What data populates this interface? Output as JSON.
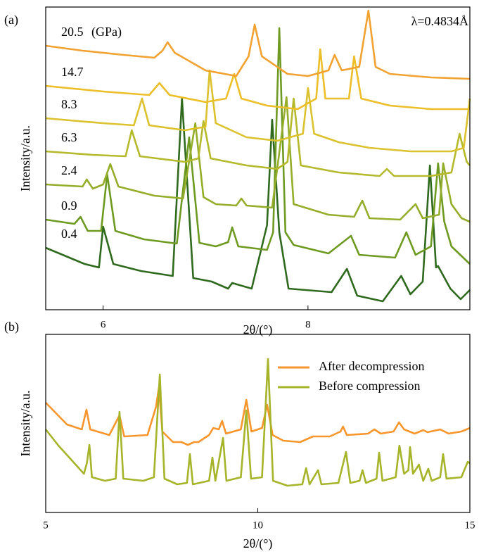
{
  "chart_data": [
    {
      "type": "line",
      "panel_label": "(a)",
      "xlabel": "2θ/(°)",
      "ylabel": "Intensity/a.u.",
      "xlim": [
        5.44,
        9.58
      ],
      "xticks": [
        6,
        8
      ],
      "ylim": [
        0,
        430
      ],
      "annotations": [
        "(GPa)",
        "λ=0.4834Å"
      ],
      "series": [
        {
          "name": "0.4",
          "color": "#2f6a1f",
          "x": [
            5.44,
            5.82,
            5.96,
            6.0,
            6.1,
            6.37,
            6.68,
            6.77,
            6.88,
            7.06,
            7.22,
            7.26,
            7.45,
            7.6,
            7.65,
            7.72,
            7.81,
            8.23,
            8.38,
            8.48,
            8.73,
            8.91,
            9.0,
            9.12,
            9.19,
            9.25,
            9.27,
            9.39,
            9.49,
            9.58
          ],
          "values": [
            88,
            65,
            60,
            118,
            65,
            55,
            48,
            300,
            45,
            40,
            30,
            38,
            30,
            120,
            270,
            110,
            30,
            25,
            58,
            20,
            12,
            48,
            22,
            40,
            205,
            60,
            62,
            30,
            15,
            28
          ]
        },
        {
          "name": "0.9",
          "color": "#6f9a22",
          "x": [
            5.44,
            5.72,
            5.78,
            5.85,
            5.98,
            6.04,
            6.12,
            6.4,
            6.72,
            6.84,
            6.94,
            7.1,
            7.22,
            7.26,
            7.32,
            7.6,
            7.66,
            7.72,
            7.78,
            7.86,
            8.2,
            8.42,
            8.5,
            8.85,
            8.96,
            9.05,
            9.2,
            9.27,
            9.33,
            9.4,
            9.58
          ],
          "values": [
            128,
            122,
            132,
            112,
            112,
            192,
            112,
            100,
            94,
            245,
            95,
            90,
            96,
            117,
            90,
            85,
            110,
            400,
            110,
            92,
            80,
            105,
            78,
            74,
            110,
            78,
            90,
            208,
            125,
            90,
            65
          ]
        },
        {
          "name": "2.4",
          "color": "#94ad2a",
          "x": [
            5.44,
            5.8,
            5.84,
            5.9,
            6.0,
            6.07,
            6.15,
            6.5,
            6.78,
            6.9,
            6.98,
            7.1,
            7.3,
            7.35,
            7.4,
            7.65,
            7.79,
            7.86,
            8.2,
            8.45,
            8.53,
            8.6,
            8.9,
            9.05,
            9.12,
            9.28,
            9.32,
            9.4,
            9.5,
            9.58
          ],
          "values": [
            178,
            175,
            185,
            172,
            178,
            207,
            175,
            162,
            158,
            265,
            160,
            150,
            148,
            158,
            148,
            145,
            302,
            150,
            135,
            132,
            155,
            130,
            128,
            150,
            130,
            135,
            208,
            150,
            130,
            125
          ]
        },
        {
          "name": "6.3",
          "color": "#b5b92c",
          "x": [
            5.44,
            5.9,
            6.22,
            6.28,
            6.36,
            6.8,
            6.93,
            6.98,
            7.05,
            7.4,
            7.7,
            7.8,
            7.86,
            7.93,
            8.3,
            8.7,
            8.77,
            8.84,
            9.2,
            9.4,
            9.48,
            9.55,
            9.58
          ],
          "values": [
            225,
            220,
            218,
            255,
            218,
            210,
            215,
            268,
            215,
            205,
            200,
            210,
            300,
            205,
            195,
            190,
            200,
            190,
            190,
            195,
            250,
            210,
            205
          ]
        },
        {
          "name": "8.3",
          "color": "#dcc22e",
          "x": [
            5.44,
            6.0,
            6.3,
            6.38,
            6.45,
            6.8,
            7.0,
            7.04,
            7.1,
            7.4,
            7.7,
            7.95,
            8.0,
            8.06,
            8.3,
            8.6,
            9.0,
            9.4,
            9.52,
            9.58
          ],
          "values": [
            272,
            265,
            262,
            300,
            262,
            255,
            260,
            340,
            265,
            245,
            240,
            250,
            315,
            250,
            238,
            230,
            225,
            225,
            230,
            300
          ]
        },
        {
          "name": "14.7",
          "color": "#ecbf2a",
          "x": [
            5.44,
            6.0,
            6.45,
            6.55,
            6.65,
            7.0,
            7.2,
            7.28,
            7.35,
            7.6,
            7.9,
            8.08,
            8.12,
            8.17,
            8.4,
            8.45,
            8.52,
            8.8,
            9.2,
            9.58
          ],
          "values": [
            318,
            310,
            305,
            322,
            305,
            295,
            300,
            335,
            300,
            290,
            285,
            300,
            370,
            300,
            300,
            360,
            300,
            290,
            285,
            285
          ]
        },
        {
          "name": "20.5",
          "color": "#f2a231",
          "x": [
            5.44,
            5.8,
            6.2,
            6.5,
            6.58,
            6.63,
            6.7,
            7.0,
            7.3,
            7.42,
            7.48,
            7.55,
            7.8,
            8.0,
            8.2,
            8.26,
            8.33,
            8.5,
            8.59,
            8.66,
            8.8,
            9.2,
            9.58
          ],
          "values": [
            375,
            368,
            362,
            358,
            368,
            380,
            365,
            340,
            332,
            360,
            405,
            360,
            335,
            332,
            340,
            362,
            340,
            345,
            425,
            345,
            335,
            330,
            328
          ]
        }
      ]
    },
    {
      "type": "line",
      "panel_label": "(b)",
      "xlabel": "2θ/(°)",
      "ylabel": "Intensity/a.u.",
      "xlim": [
        5,
        15
      ],
      "xticks": [
        5,
        10,
        15
      ],
      "ylim": [
        0,
        253
      ],
      "legend": "upper right",
      "series": [
        {
          "name": "After decompression",
          "color": "#f7962c",
          "x": [
            5.0,
            5.5,
            5.85,
            5.96,
            6.05,
            6.5,
            6.74,
            6.85,
            7.4,
            7.6,
            7.67,
            7.75,
            8.0,
            8.2,
            8.35,
            8.5,
            8.6,
            8.85,
            8.95,
            9.08,
            9.16,
            9.25,
            9.6,
            9.73,
            9.85,
            10.1,
            10.22,
            10.35,
            10.6,
            11.0,
            11.3,
            11.7,
            11.95,
            12.01,
            12.1,
            12.6,
            12.75,
            12.9,
            13.2,
            13.33,
            13.45,
            13.7,
            13.9,
            14.0,
            14.3,
            14.5,
            14.8,
            15.0
          ],
          "values": [
            156,
            125,
            118,
            146,
            118,
            110,
            138,
            108,
            110,
            150,
            178,
            115,
            100,
            100,
            96,
            100,
            100,
            110,
            120,
            118,
            130,
            112,
            118,
            160,
            115,
            120,
            153,
            110,
            102,
            100,
            108,
            108,
            115,
            122,
            110,
            112,
            118,
            112,
            115,
            128,
            118,
            112,
            117,
            114,
            118,
            112,
            115,
            120
          ]
        },
        {
          "name": "Before compression",
          "color": "#a6b42a",
          "x": [
            5.0,
            5.3,
            5.6,
            5.9,
            5.97,
            6.03,
            6.09,
            6.4,
            6.65,
            6.74,
            6.83,
            7.3,
            7.55,
            7.69,
            7.8,
            8.1,
            8.33,
            8.4,
            8.47,
            8.85,
            8.93,
            9.0,
            9.18,
            9.26,
            9.6,
            9.73,
            9.84,
            10.1,
            10.24,
            10.36,
            10.7,
            11.05,
            11.14,
            11.22,
            11.42,
            11.5,
            11.9,
            12.08,
            12.18,
            12.4,
            12.47,
            12.55,
            12.8,
            12.86,
            12.94,
            13.25,
            13.34,
            13.45,
            13.55,
            13.59,
            13.66,
            13.8,
            13.9,
            14.02,
            14.1,
            14.3,
            14.37,
            14.45,
            14.8,
            14.95,
            15.0
          ],
          "values": [
            118,
            95,
            75,
            55,
            70,
            96,
            50,
            45,
            48,
            143,
            48,
            45,
            50,
            196,
            48,
            40,
            42,
            83,
            40,
            45,
            78,
            45,
            106,
            45,
            50,
            145,
            48,
            50,
            218,
            45,
            38,
            40,
            63,
            40,
            60,
            40,
            42,
            86,
            42,
            45,
            60,
            42,
            48,
            85,
            45,
            50,
            95,
            55,
            60,
            93,
            55,
            68,
            45,
            62,
            45,
            50,
            83,
            48,
            50,
            72,
            70
          ]
        }
      ]
    }
  ]
}
